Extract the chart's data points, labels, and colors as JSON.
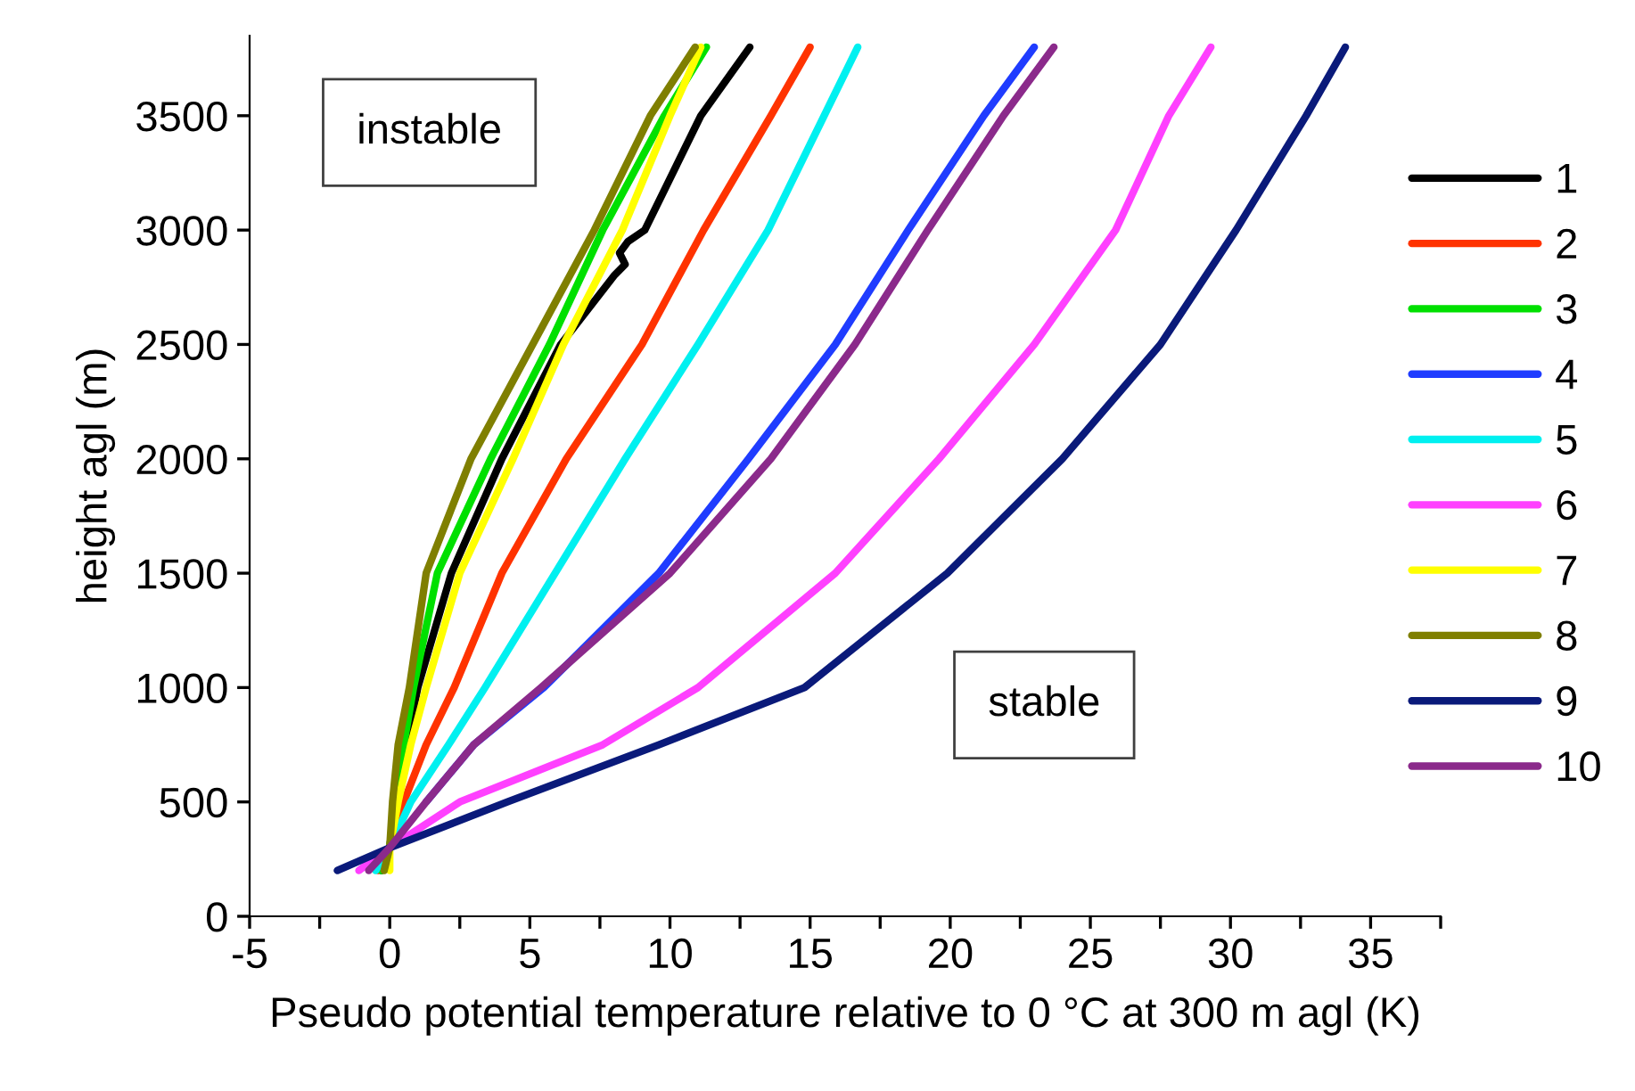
{
  "chart_data": {
    "type": "line",
    "xlabel": "Pseudo potential temperature relative to 0 °C at 300 m agl (K)",
    "ylabel": "height agl (m)",
    "xlim": [
      -5,
      37.5
    ],
    "ylim": [
      0,
      3850
    ],
    "xticks": [
      -5,
      {
        "value": -2.5,
        "label": null
      },
      0,
      {
        "value": 2.5,
        "label": null
      },
      5,
      {
        "value": 7.5,
        "label": null
      },
      10,
      {
        "value": 12.5,
        "label": null
      },
      15,
      {
        "value": 17.5,
        "label": null
      },
      20,
      {
        "value": 22.5,
        "label": null
      },
      25,
      {
        "value": 27.5,
        "label": null
      },
      30,
      {
        "value": 32.5,
        "label": null
      },
      35,
      {
        "value": 37.5,
        "label": null
      }
    ],
    "yticks": [
      0,
      500,
      1000,
      1500,
      2000,
      2500,
      3000,
      3500
    ],
    "grid": false,
    "legend": "right",
    "marker": "none",
    "line_style": "solid",
    "annotations": [
      "instable",
      "stable"
    ],
    "series": [
      {
        "name": "1",
        "color": "#000000",
        "x": [
          -0.3,
          0,
          0.2,
          0.6,
          1.0,
          2.2,
          4.0,
          6.1,
          8.0,
          8.4,
          8.2,
          8.5,
          9.1,
          11.1,
          12.85
        ],
        "values": [
          200,
          300,
          500,
          750,
          1000,
          1500,
          2000,
          2500,
          2800,
          2850,
          2900,
          2950,
          3000,
          3500,
          3800
        ]
      },
      {
        "name": "2",
        "color": "#ff3300",
        "x": [
          -0.4,
          0,
          0.5,
          1.3,
          2.3,
          4.0,
          6.3,
          9.0,
          11.2,
          13.6,
          15.0
        ],
        "values": [
          200,
          300,
          500,
          750,
          1000,
          1500,
          2000,
          2500,
          3000,
          3500,
          3800
        ]
      },
      {
        "name": "3",
        "color": "#00e000",
        "x": [
          -0.3,
          0,
          0.2,
          0.5,
          0.85,
          1.7,
          3.6,
          5.7,
          7.6,
          9.8,
          11.3
        ],
        "values": [
          200,
          300,
          500,
          750,
          1000,
          1500,
          2000,
          2500,
          3000,
          3500,
          3800
        ]
      },
      {
        "name": "4",
        "color": "#1f3cff",
        "x": [
          1.3,
          3.0,
          5.5,
          9.6,
          12.8,
          15.9,
          18.5,
          21.2,
          23.0
        ],
        "values": [
          500,
          750,
          1000,
          1500,
          2000,
          2500,
          3000,
          3500,
          3800
        ]
      },
      {
        "name": "5",
        "color": "#00f0f0",
        "x": [
          -0.5,
          0,
          0.75,
          2.1,
          3.4,
          5.9,
          8.4,
          11.0,
          13.5,
          15.5,
          16.7
        ],
        "values": [
          200,
          300,
          500,
          750,
          1000,
          1500,
          2000,
          2500,
          3000,
          3500,
          3800
        ]
      },
      {
        "name": "6",
        "color": "#ff40ff",
        "x": [
          -1.1,
          0,
          2.5,
          7.6,
          11.0,
          15.9,
          19.6,
          23.0,
          25.9,
          27.8,
          29.3
        ],
        "values": [
          200,
          300,
          500,
          750,
          1000,
          1500,
          2000,
          2500,
          3000,
          3500,
          3800
        ]
      },
      {
        "name": "7",
        "color": "#ffff00",
        "x": [
          0,
          0,
          0.3,
          0.75,
          1.3,
          2.5,
          4.4,
          6.2,
          8.3,
          10.0,
          11.1
        ],
        "values": [
          200,
          300,
          500,
          750,
          1000,
          1500,
          2000,
          2500,
          3000,
          3500,
          3800
        ]
      },
      {
        "name": "8",
        "color": "#7f7f00",
        "x": [
          -0.2,
          0,
          0.1,
          0.3,
          0.7,
          1.3,
          2.9,
          5.1,
          7.3,
          9.3,
          10.9
        ],
        "values": [
          200,
          300,
          500,
          750,
          1000,
          1500,
          2000,
          2500,
          3000,
          3500,
          3800
        ]
      },
      {
        "name": "9",
        "color": "#0a1a7a",
        "x": [
          -1.87,
          0,
          4.2,
          9.6,
          14.8,
          19.9,
          24.0,
          27.5,
          30.2,
          32.7,
          34.1
        ],
        "values": [
          200,
          300,
          500,
          750,
          1000,
          1500,
          2000,
          2500,
          3000,
          3500,
          3800
        ]
      },
      {
        "name": "10",
        "color": "#8b2a8b",
        "x": [
          -0.75,
          0,
          1.3,
          3.0,
          5.4,
          10.0,
          13.6,
          16.6,
          19.2,
          21.9,
          23.7
        ],
        "values": [
          200,
          300,
          500,
          750,
          1000,
          1500,
          2000,
          2500,
          3000,
          3500,
          3800
        ]
      }
    ]
  }
}
